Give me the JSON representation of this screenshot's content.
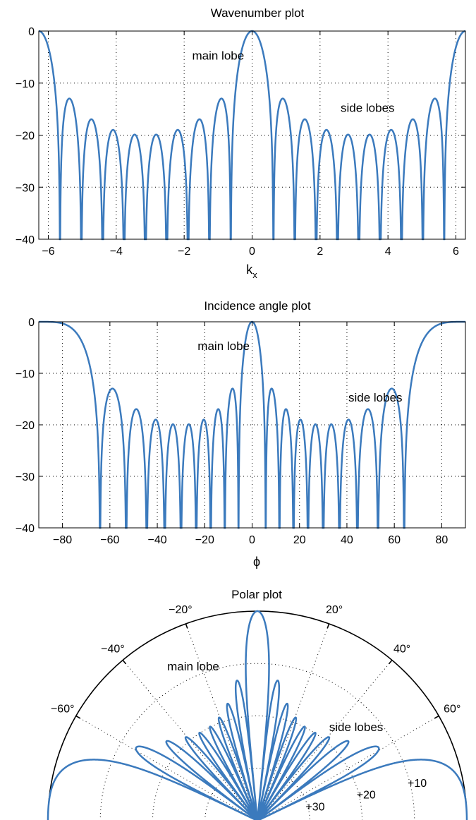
{
  "chart_data": [
    {
      "type": "line",
      "title": "Wavenumber plot",
      "xlabel": "k",
      "xlabel_subscript": "x",
      "ylabel": "",
      "xlim": [
        -6.28,
        6.28
      ],
      "ylim": [
        -40,
        0
      ],
      "xticks": [
        -6,
        -4,
        -2,
        0,
        2,
        4,
        6
      ],
      "yticks": [
        0,
        -10,
        -20,
        -30,
        -40
      ],
      "xtick_labels": [
        "−6",
        "−4",
        "−2",
        "0",
        "2",
        "4",
        "6"
      ],
      "ytick_labels": [
        "0",
        "−10",
        "−20",
        "−30",
        "−40"
      ],
      "grid": true,
      "series_formula": "20*log10(|sin(5*kx)/(10*sin(kx/2))|)",
      "annotations": [
        {
          "text": "main lobe",
          "x": -1.0,
          "y": -5.5
        },
        {
          "text": "side lobes",
          "x": 3.4,
          "y": -15.5
        }
      ],
      "color": "#3b7abd"
    },
    {
      "type": "line",
      "title": "Incidence angle plot",
      "xlabel": "ϕ",
      "ylabel": "",
      "xlim": [
        -90,
        90
      ],
      "ylim": [
        -40,
        0
      ],
      "xticks": [
        -80,
        -60,
        -40,
        -20,
        0,
        20,
        40,
        60,
        80
      ],
      "yticks": [
        0,
        -10,
        -20,
        -30,
        -40
      ],
      "xtick_labels": [
        "−80",
        "−60",
        "−40",
        "−20",
        "0",
        "20",
        "40",
        "60",
        "80"
      ],
      "ytick_labels": [
        "0",
        "−10",
        "−20",
        "−30",
        "−40"
      ],
      "grid": true,
      "series_formula": "kx = 2*pi*sin(phi)",
      "annotations": [
        {
          "text": "main lobe",
          "x": -12,
          "y": -5.5
        },
        {
          "text": "side lobes",
          "x": 52,
          "y": -15.5
        }
      ],
      "color": "#3b7abd"
    },
    {
      "type": "polar",
      "title": "Polar plot",
      "rlim": [
        -40,
        0
      ],
      "rticks": [
        -10,
        -20,
        -30
      ],
      "rtick_labels": [
        "10",
        "20",
        "30"
      ],
      "angle_labels": [
        "−60°",
        "−40°",
        "−20°",
        "20°",
        "40°",
        "60°"
      ],
      "angles": [
        -60,
        -40,
        -20,
        20,
        40,
        60
      ],
      "grid": true,
      "annotations": [
        {
          "text": "main lobe"
        },
        {
          "text": "side lobes"
        }
      ],
      "color": "#3b7abd"
    }
  ]
}
